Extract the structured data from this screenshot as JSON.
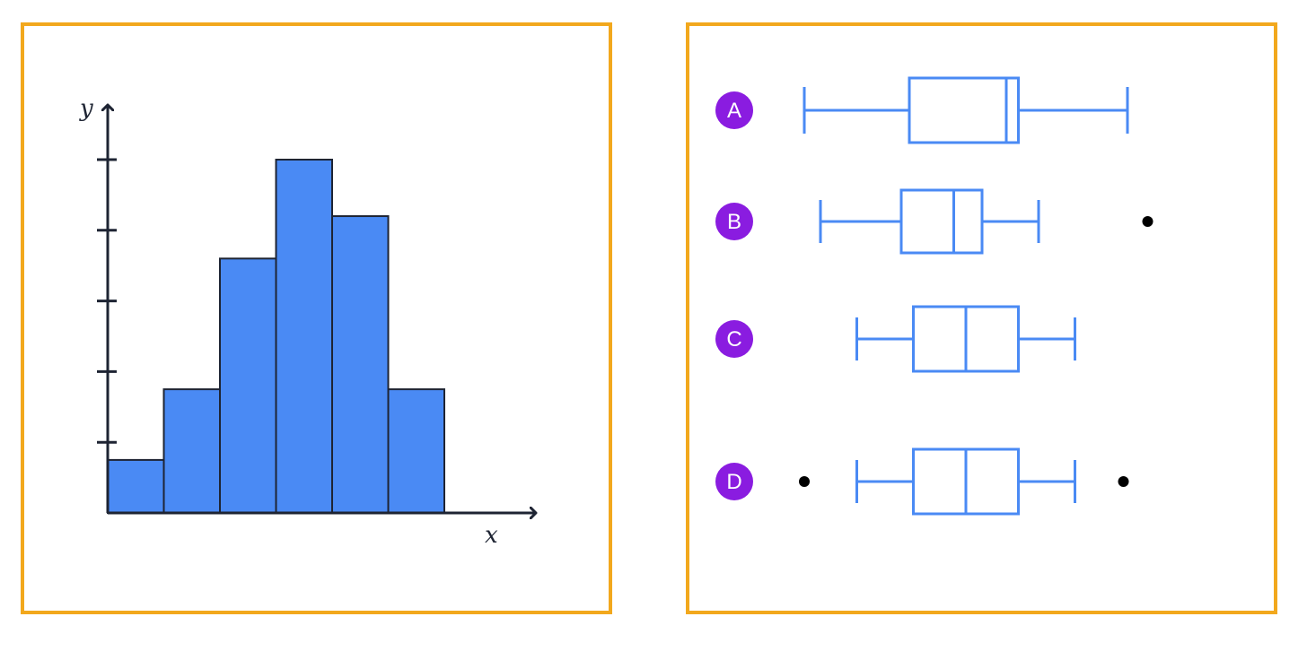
{
  "chart_data": [
    {
      "type": "histogram",
      "xlabel": "x",
      "ylabel": "y",
      "bins": 6,
      "values": [
        1.5,
        3.5,
        7.2,
        10.0,
        8.4,
        3.5
      ],
      "ylim": [
        0,
        10
      ],
      "ytick_count": 5,
      "bar_color": "#4a8af4",
      "edge_color": "#1e2433"
    },
    {
      "type": "boxplot",
      "orientation": "horizontal",
      "box_color": "#4a8af4",
      "badge_color": "#8a1ce0",
      "xlim": [
        0,
        100
      ],
      "boxes": [
        {
          "label": "A",
          "whisker_low": 4,
          "q1": 30,
          "median": 54,
          "q3": 57,
          "whisker_high": 84,
          "outliers": []
        },
        {
          "label": "B",
          "whisker_low": 8,
          "q1": 28,
          "median": 41,
          "q3": 48,
          "whisker_high": 62,
          "outliers": [
            89
          ]
        },
        {
          "label": "C",
          "whisker_low": 17,
          "q1": 31,
          "median": 44,
          "q3": 57,
          "whisker_high": 71,
          "outliers": []
        },
        {
          "label": "D",
          "whisker_low": 17,
          "q1": 31,
          "median": 44,
          "q3": 57,
          "whisker_high": 71,
          "outliers": [
            4,
            83
          ]
        }
      ]
    }
  ]
}
